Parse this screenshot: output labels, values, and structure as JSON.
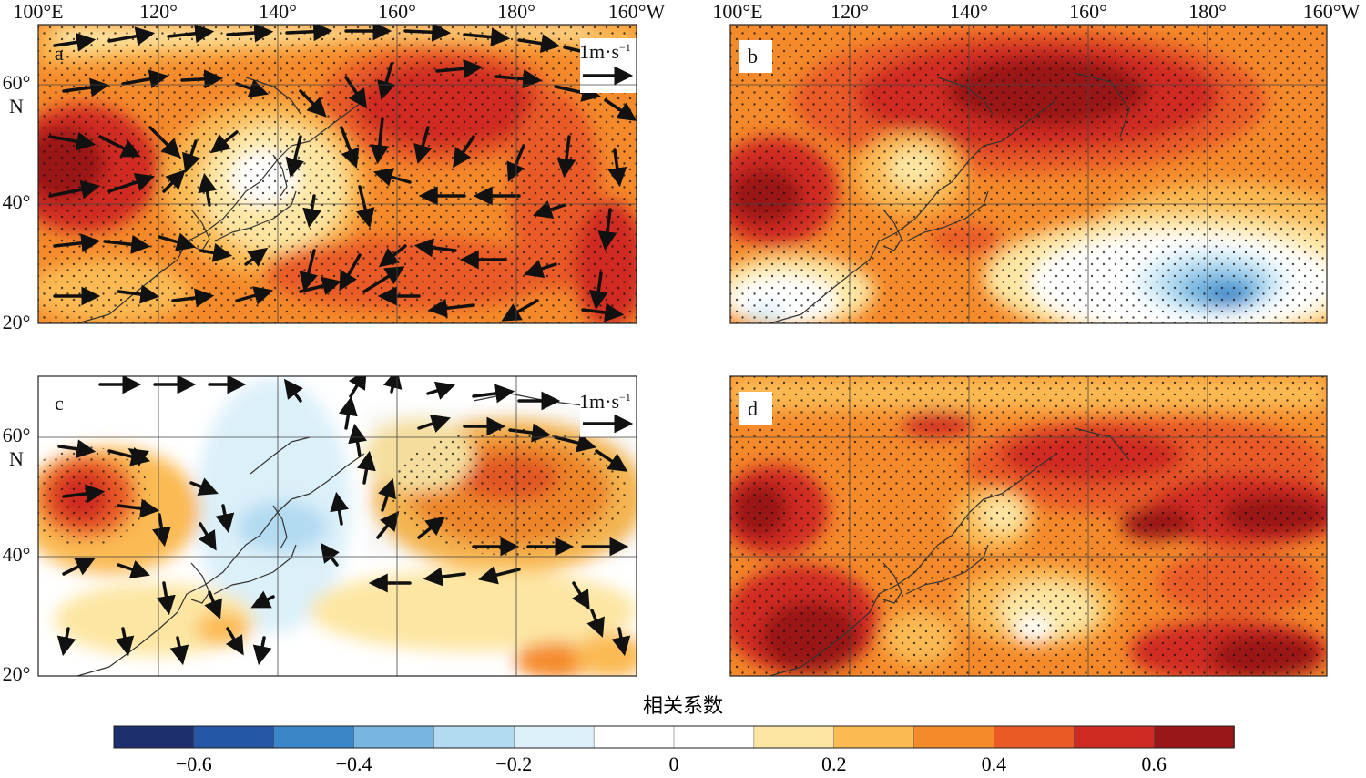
{
  "panels": [
    {
      "id": "a",
      "label": "a",
      "has_vectors": true,
      "ref_vector_label": "1m·s",
      "ref_vector_exp": "−1"
    },
    {
      "id": "b",
      "label": "b",
      "has_vectors": false
    },
    {
      "id": "c",
      "label": "c",
      "has_vectors": true,
      "ref_vector_label": "1m·s",
      "ref_vector_exp": "−1"
    },
    {
      "id": "d",
      "label": "d",
      "has_vectors": false
    }
  ],
  "lon_ticks": [
    "100°E",
    "120°",
    "140°",
    "160°",
    "180°",
    "160°W"
  ],
  "lat_ticks": {
    "lat60": "60°",
    "lat60_n": "N",
    "lat40": "40°",
    "lat20": "20°"
  },
  "colorbar": {
    "title": "相关系数",
    "colors": [
      "#1d2f6e",
      "#2457a6",
      "#3b86c8",
      "#76b6e0",
      "#b2daf1",
      "#dcf0f9",
      "#ffffff",
      "#ffffff",
      "#fde6a3",
      "#fbba52",
      "#f58a2a",
      "#e95a25",
      "#d02a24",
      "#9a1719"
    ],
    "tick_labels": [
      "−0.6",
      "−0.4",
      "−0.2",
      "0",
      "0.2",
      "0.4",
      "0.6"
    ]
  }
}
